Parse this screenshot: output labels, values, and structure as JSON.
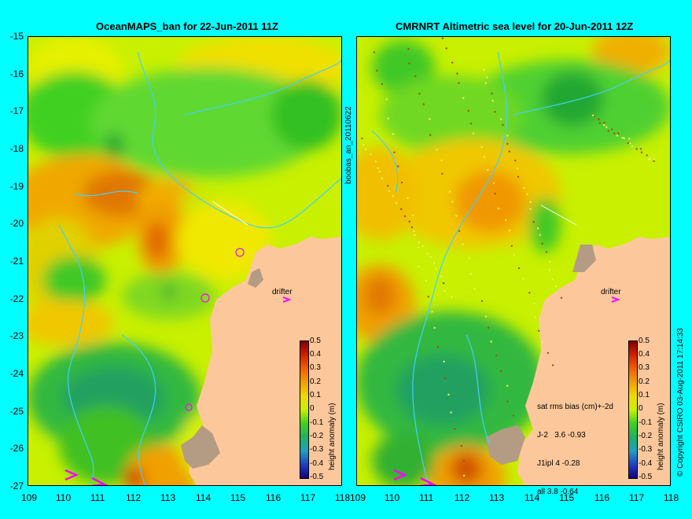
{
  "left_panel": {
    "title": "OceanMAPS_ban for 22-Jun-2011 11Z",
    "drifter_label": "drifter"
  },
  "right_panel": {
    "title": "CMRNRT Altimetric sea level  for 20-Jun-2011 12Z",
    "drifter_label": "drifter",
    "stats": {
      "heading": "sat rms bias (cm)+-2d",
      "rows": [
        "J-2   3.6 -0.93",
        "J1ipl 4 -0.28",
        "all 3.8 -0.64"
      ]
    }
  },
  "side_label": "boobas_an_20110622",
  "credit": "© Copyright CSIRO  03-Aug-2011 17:14:33",
  "colorbar": {
    "label": "height anomaly (m)",
    "ticks": [
      "0.5",
      "0.4",
      "0.3",
      "0.2",
      "0.1",
      "0",
      "-0.1",
      "-0.2",
      "-0.3",
      "-0.4",
      "-0.5"
    ]
  },
  "axes": {
    "y_ticks": [
      "-15",
      "-16",
      "-17",
      "-18",
      "-19",
      "-20",
      "-21",
      "-22",
      "-23",
      "-24",
      "-25",
      "-26",
      "-27"
    ],
    "x_ticks_left": [
      "109",
      "110",
      "111",
      "112",
      "113",
      "114",
      "115",
      "116",
      "117",
      "118"
    ],
    "x_ticks_right": [
      "109",
      "110",
      "111",
      "112",
      "113",
      "114",
      "115",
      "116",
      "117",
      "118"
    ]
  },
  "colors": {
    "background": "#00ffff",
    "land": "#fcc89b",
    "coast_shelf": "#b49b84",
    "contours": "#40d0ff",
    "drifter_arrow": "#ff00ff"
  }
}
